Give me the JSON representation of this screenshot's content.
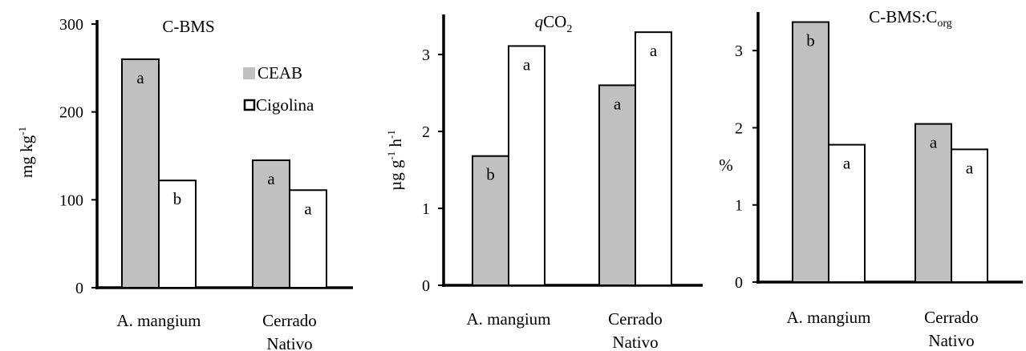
{
  "chart_data": [
    {
      "type": "bar",
      "title": "C-BMS",
      "ylabel": "mg kg",
      "ylabel_sup": "-1",
      "ylim": [
        0,
        300
      ],
      "yticks": [
        "0",
        "100",
        "200",
        "300"
      ],
      "categories": [
        {
          "line1": "A. mangium",
          "line2": ""
        },
        {
          "line1": "Cerrado",
          "line2": "Nativo"
        }
      ],
      "series": [
        {
          "name": "CEAB",
          "color": "#c0c0c0",
          "values": [
            260,
            145
          ],
          "labels": [
            "a",
            "a"
          ]
        },
        {
          "name": "Cigolina",
          "color": "#ffffff",
          "values": [
            122,
            111
          ],
          "labels": [
            "b",
            "a"
          ]
        }
      ],
      "legend": "top-right"
    },
    {
      "type": "bar",
      "title_italic": "q",
      "title": "CO",
      "title_sub": "2",
      "ylabel": "µg g",
      "ylabel_sup1": "-1",
      "ylabel_mid": " h",
      "ylabel_sup2": "-1",
      "ylim": [
        0,
        3.5
      ],
      "yticks": [
        "0",
        "1",
        "2",
        "3"
      ],
      "categories": [
        {
          "line1": "A. mangium",
          "line2": ""
        },
        {
          "line1": "Cerrado",
          "line2": "Nativo"
        }
      ],
      "series": [
        {
          "color": "#c0c0c0",
          "values": [
            1.68,
            2.6
          ],
          "labels": [
            "b",
            "a"
          ]
        },
        {
          "color": "#ffffff",
          "values": [
            3.11,
            3.29
          ],
          "labels": [
            "a",
            "a"
          ]
        }
      ]
    },
    {
      "type": "bar",
      "title": "C-BMS:C",
      "title_sub": "org",
      "ylabel": "%",
      "ylim": [
        0,
        3.5
      ],
      "yticks": [
        "0",
        "1",
        "2",
        "3"
      ],
      "categories": [
        {
          "line1": "A. mangium",
          "line2": ""
        },
        {
          "line1": "Cerrado",
          "line2": "Nativo"
        }
      ],
      "series": [
        {
          "color": "#c0c0c0",
          "values": [
            3.37,
            2.05
          ],
          "labels": [
            "b",
            "a"
          ]
        },
        {
          "color": "#ffffff",
          "values": [
            1.78,
            1.72
          ],
          "labels": [
            "a",
            "a"
          ]
        }
      ]
    }
  ]
}
